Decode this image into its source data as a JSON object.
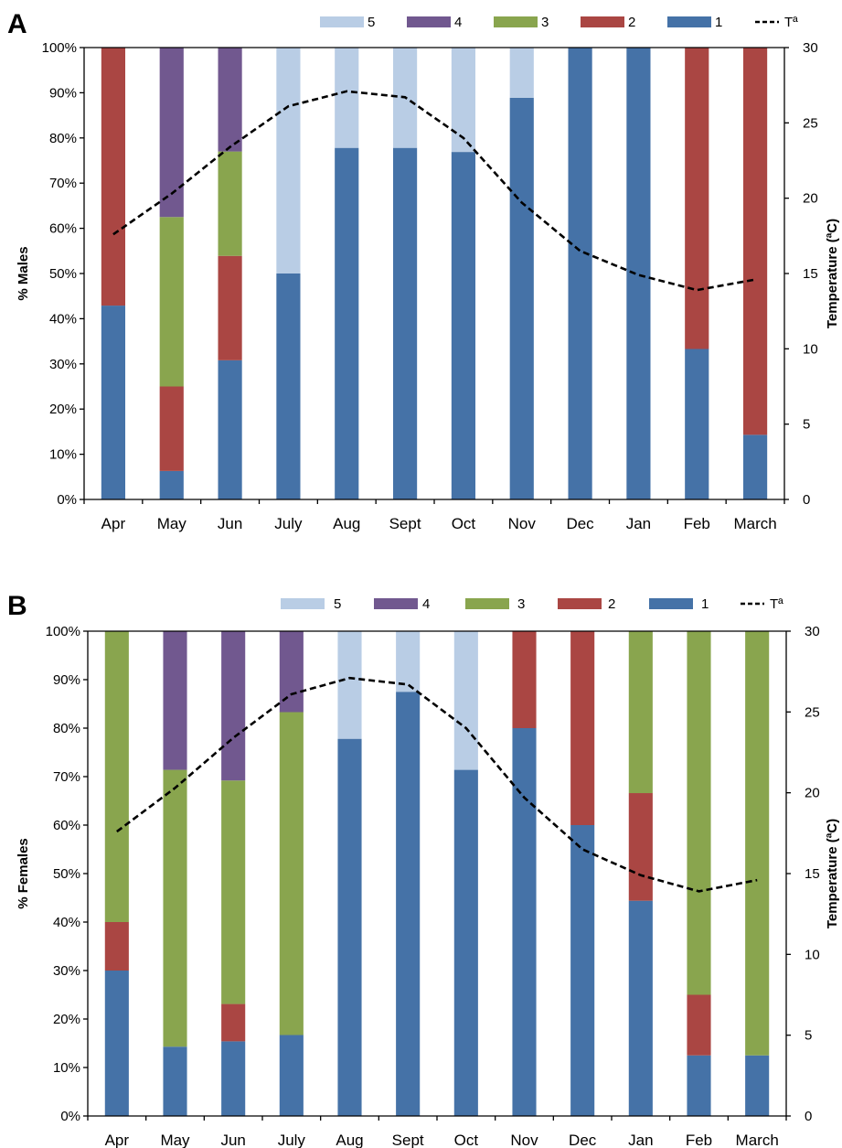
{
  "chart_data": [
    {
      "type": "bar",
      "stacked": true,
      "panel_label": "A",
      "categories": [
        "Apr",
        "May",
        "Jun",
        "July",
        "Aug",
        "Sept",
        "Oct",
        "Nov",
        "Dec",
        "Jan",
        "Feb",
        "March"
      ],
      "ylabel": "% Males",
      "y2label": "Temperature (ªC)",
      "ylim": [
        0,
        100
      ],
      "y2lim": [
        0,
        30
      ],
      "yticks": [
        "0%",
        "10%",
        "20%",
        "30%",
        "40%",
        "50%",
        "60%",
        "70%",
        "80%",
        "90%",
        "100%"
      ],
      "y2ticks": [
        "0",
        "5",
        "10",
        "15",
        "20",
        "25",
        "30"
      ],
      "legend_position": "top",
      "legend_order": [
        "5",
        "4",
        "3",
        "2",
        "1",
        "Tª"
      ],
      "series": [
        {
          "name": "1",
          "color": "#4572A7",
          "values": [
            42.9,
            6.3,
            30.8,
            50,
            77.8,
            77.8,
            76.9,
            88.9,
            100,
            100,
            33.3,
            14.3
          ]
        },
        {
          "name": "2",
          "color": "#AA4643",
          "values": [
            57.1,
            18.7,
            23.1,
            0,
            0,
            0,
            0,
            0,
            0,
            0,
            66.7,
            85.7
          ]
        },
        {
          "name": "3",
          "color": "#89A54E",
          "values": [
            0,
            37.5,
            23.1,
            0,
            0,
            0,
            0,
            0,
            0,
            0,
            0,
            0
          ]
        },
        {
          "name": "4",
          "color": "#71588F",
          "values": [
            0,
            37.5,
            23.0,
            0,
            0,
            0,
            0,
            0,
            0,
            0,
            0,
            0
          ]
        },
        {
          "name": "5",
          "color": "#B9CDE5",
          "values": [
            0,
            0,
            0,
            50,
            22.2,
            22.2,
            23.1,
            11.1,
            0,
            0,
            0,
            0
          ]
        }
      ],
      "line": {
        "name": "Tª",
        "color": "#000000",
        "style": "dashed",
        "axis": "secondary",
        "values": [
          17.6,
          20.3,
          23.4,
          26.1,
          27.1,
          26.7,
          24.0,
          19.7,
          16.5,
          14.9,
          13.9,
          14.6
        ]
      }
    },
    {
      "type": "bar",
      "stacked": true,
      "panel_label": "B",
      "categories": [
        "Apr",
        "May",
        "Jun",
        "July",
        "Aug",
        "Sept",
        "Oct",
        "Nov",
        "Dec",
        "Jan",
        "Feb",
        "March"
      ],
      "ylabel": "% Females",
      "y2label": "Temperature (ªC)",
      "ylim": [
        0,
        100
      ],
      "y2lim": [
        0,
        30
      ],
      "yticks": [
        "0%",
        "10%",
        "20%",
        "30%",
        "40%",
        "50%",
        "60%",
        "70%",
        "80%",
        "90%",
        "100%"
      ],
      "y2ticks": [
        "0",
        "5",
        "10",
        "15",
        "20",
        "25",
        "30"
      ],
      "legend_position": "top",
      "legend_order": [
        "5",
        "4",
        "3",
        "2",
        "1",
        "Tª"
      ],
      "series": [
        {
          "name": "1",
          "color": "#4572A7",
          "values": [
            30,
            14.3,
            15.4,
            16.7,
            77.8,
            87.5,
            71.4,
            80,
            60,
            44.4,
            12.5,
            12.5
          ]
        },
        {
          "name": "2",
          "color": "#AA4643",
          "values": [
            10,
            0,
            7.7,
            0,
            0,
            0,
            0,
            20,
            40,
            22.2,
            12.5,
            0
          ]
        },
        {
          "name": "3",
          "color": "#89A54E",
          "values": [
            60,
            57.1,
            46.1,
            66.6,
            0,
            0,
            0,
            0,
            0,
            33.4,
            75,
            87.5
          ]
        },
        {
          "name": "4",
          "color": "#71588F",
          "values": [
            0,
            28.6,
            30.8,
            16.7,
            0,
            0,
            0,
            0,
            0,
            0,
            0,
            0
          ]
        },
        {
          "name": "5",
          "color": "#B9CDE5",
          "values": [
            0,
            0,
            0,
            0,
            22.2,
            12.5,
            28.6,
            0,
            0,
            0,
            0,
            0
          ]
        }
      ],
      "line": {
        "name": "Tª",
        "color": "#000000",
        "style": "dashed",
        "axis": "secondary",
        "values": [
          17.6,
          20.3,
          23.4,
          26.1,
          27.1,
          26.7,
          24.0,
          19.7,
          16.5,
          14.9,
          13.9,
          14.6
        ]
      }
    }
  ]
}
